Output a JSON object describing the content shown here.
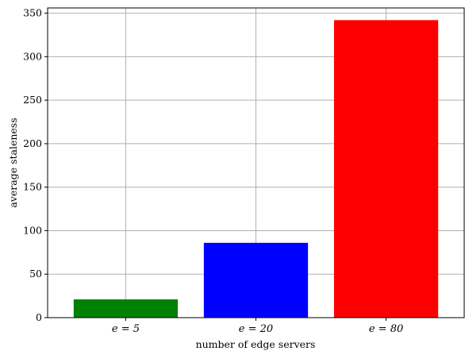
{
  "chart_data": {
    "type": "bar",
    "categories": [
      "e = 5",
      "e = 20",
      "e = 80"
    ],
    "values": [
      21,
      86,
      342
    ],
    "colors": [
      "#008000",
      "#0000ff",
      "#ff0000"
    ],
    "xlabel": "number of edge servers",
    "ylabel": "average staleness",
    "ylim": [
      0,
      356
    ],
    "yticks": [
      0,
      50,
      100,
      150,
      200,
      250,
      300,
      350
    ],
    "grid": true
  }
}
